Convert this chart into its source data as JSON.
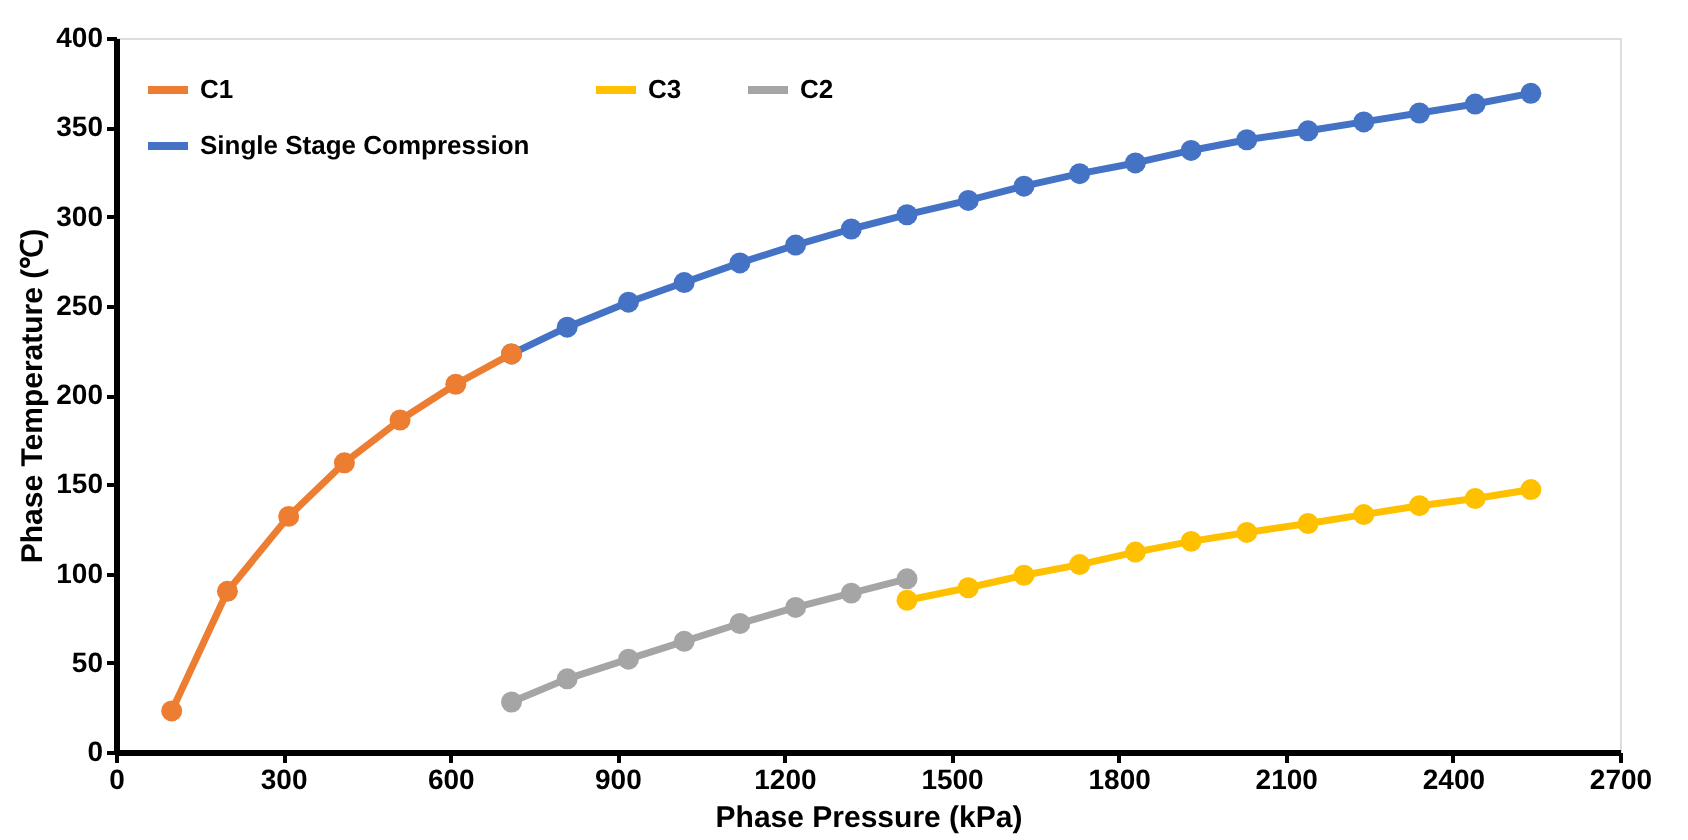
{
  "chart_data": {
    "type": "line",
    "xlabel": "Phase Pressure (kPa)",
    "ylabel": "Phase Temperature (℃)",
    "xlim": [
      0,
      2700
    ],
    "xticks": [
      0,
      300,
      600,
      900,
      1200,
      1500,
      1800,
      2100,
      2400,
      2700
    ],
    "ylim": [
      0,
      400
    ],
    "yticks": [
      0,
      50,
      100,
      150,
      200,
      250,
      300,
      350,
      400
    ],
    "grid": false,
    "legend": "top left",
    "marker": "circle",
    "line_style": "solid",
    "series": [
      {
        "name": "C1",
        "color": "#ed7d31",
        "x": [
          100,
          200,
          310,
          410,
          510,
          610,
          710
        ],
        "values": [
          23,
          90,
          132,
          162,
          186,
          206,
          223
        ]
      },
      {
        "name": "C2",
        "color": "#a5a5a5",
        "x": [
          710,
          810,
          920,
          1020,
          1120,
          1220,
          1320,
          1420
        ],
        "values": [
          28,
          41,
          52,
          62,
          72,
          81,
          89,
          97
        ]
      },
      {
        "name": "C3",
        "color": "#ffc000",
        "x": [
          1420,
          1530,
          1630,
          1730,
          1830,
          1930,
          2030,
          2140,
          2240,
          2340,
          2440,
          2540
        ],
        "values": [
          85,
          92,
          99,
          105,
          112,
          118,
          123,
          128,
          133,
          138,
          142,
          147
        ]
      },
      {
        "name": "Single Stage Compression",
        "color": "#4472c4",
        "x": [
          710,
          810,
          920,
          1020,
          1120,
          1220,
          1320,
          1420,
          1530,
          1630,
          1730,
          1830,
          1930,
          2030,
          2140,
          2240,
          2340,
          2440,
          2540
        ],
        "values": [
          223,
          238,
          252,
          263,
          274,
          284,
          293,
          301,
          309,
          317,
          324,
          330,
          337,
          343,
          348,
          353,
          358,
          363,
          369
        ]
      }
    ]
  }
}
